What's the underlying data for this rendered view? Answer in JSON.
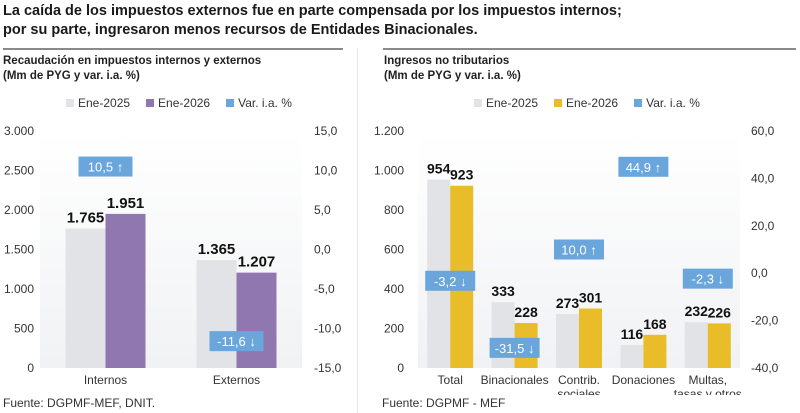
{
  "headline": {
    "line1": "La caída de los impuestos externos fue en parte compensada por los impuestos internos;",
    "line2": "por su parte, ingresaron menos recursos de Entidades Binacionales."
  },
  "colors": {
    "ene2025": "#e1e3e6",
    "left_ene2026": "#9077b0",
    "right_ene2026": "#e9bc2a",
    "var_box": "#6aa6dc",
    "var_text": "#ffffff"
  },
  "chart_data": [
    {
      "type": "bar",
      "title": "Recaudación en impuestos internos y externos",
      "subtitle": "(Mm de PYG y var. i.a. %)",
      "categories": [
        "Internos",
        "Externos"
      ],
      "series": [
        {
          "name": "Ene-2025",
          "values": [
            1765,
            1365
          ],
          "labels": [
            "",
            "1.365"
          ]
        },
        {
          "name": "Ene-2026",
          "values": [
            1951,
            1207
          ],
          "labels": [
            "1.951",
            "1.207"
          ]
        }
      ],
      "value_labels_2025": [
        "1.765",
        "1.365"
      ],
      "variation": {
        "name": "Var. i.a. %",
        "values": [
          10.5,
          -11.6
        ],
        "labels": [
          "10,5 ↑",
          "-11,6 ↓"
        ]
      },
      "ylim": [
        0,
        3000
      ],
      "yticks": [
        "0",
        "500",
        "1.000",
        "1.500",
        "2.000",
        "2.500",
        "3.000"
      ],
      "y2lim": [
        -15,
        15
      ],
      "y2ticks": [
        "-15,0",
        "-10,0",
        "-5,0",
        "0,0",
        "5,0",
        "10,0",
        "15,0"
      ],
      "legend": [
        "Ene-2025",
        "Ene-2026",
        "Var. i.a. %"
      ],
      "legend_position": "top",
      "source": "Fuente: DGPMF-MEF, DNIT."
    },
    {
      "type": "bar",
      "title": "Ingresos no tributarios",
      "subtitle": "(Mm de PYG y var. i.a. %)",
      "categories": [
        "Total",
        "Binacionales",
        "Contrib.|sociales",
        "Donaciones",
        "Multas,|tasas y otros"
      ],
      "series": [
        {
          "name": "Ene-2025",
          "values": [
            954,
            333,
            273,
            116,
            232
          ],
          "labels": [
            "954",
            "333",
            "273",
            "116",
            "232"
          ]
        },
        {
          "name": "Ene-2026",
          "values": [
            923,
            228,
            301,
            168,
            226
          ],
          "labels": [
            "923",
            "228",
            "301",
            "168",
            "226"
          ]
        }
      ],
      "variation": {
        "name": "Var. i.a. %",
        "values": [
          -3.2,
          -31.5,
          10.0,
          44.9,
          -2.3
        ],
        "labels": [
          "-3,2 ↓",
          "-31,5 ↓",
          "10,0 ↑",
          "44,9 ↑",
          "-2,3 ↓"
        ]
      },
      "ylim": [
        0,
        1200
      ],
      "yticks": [
        "0",
        "200",
        "400",
        "600",
        "800",
        "1.000",
        "1.200"
      ],
      "y2lim": [
        -40,
        60
      ],
      "y2ticks": [
        "-40,0",
        "-20,0",
        "0,0",
        "20,0",
        "40,0",
        "60,0"
      ],
      "legend": [
        "Ene-2025",
        "Ene-2026",
        "Var. i.a. %"
      ],
      "legend_position": "top",
      "source": "Fuente: DGPMF - MEF"
    }
  ]
}
